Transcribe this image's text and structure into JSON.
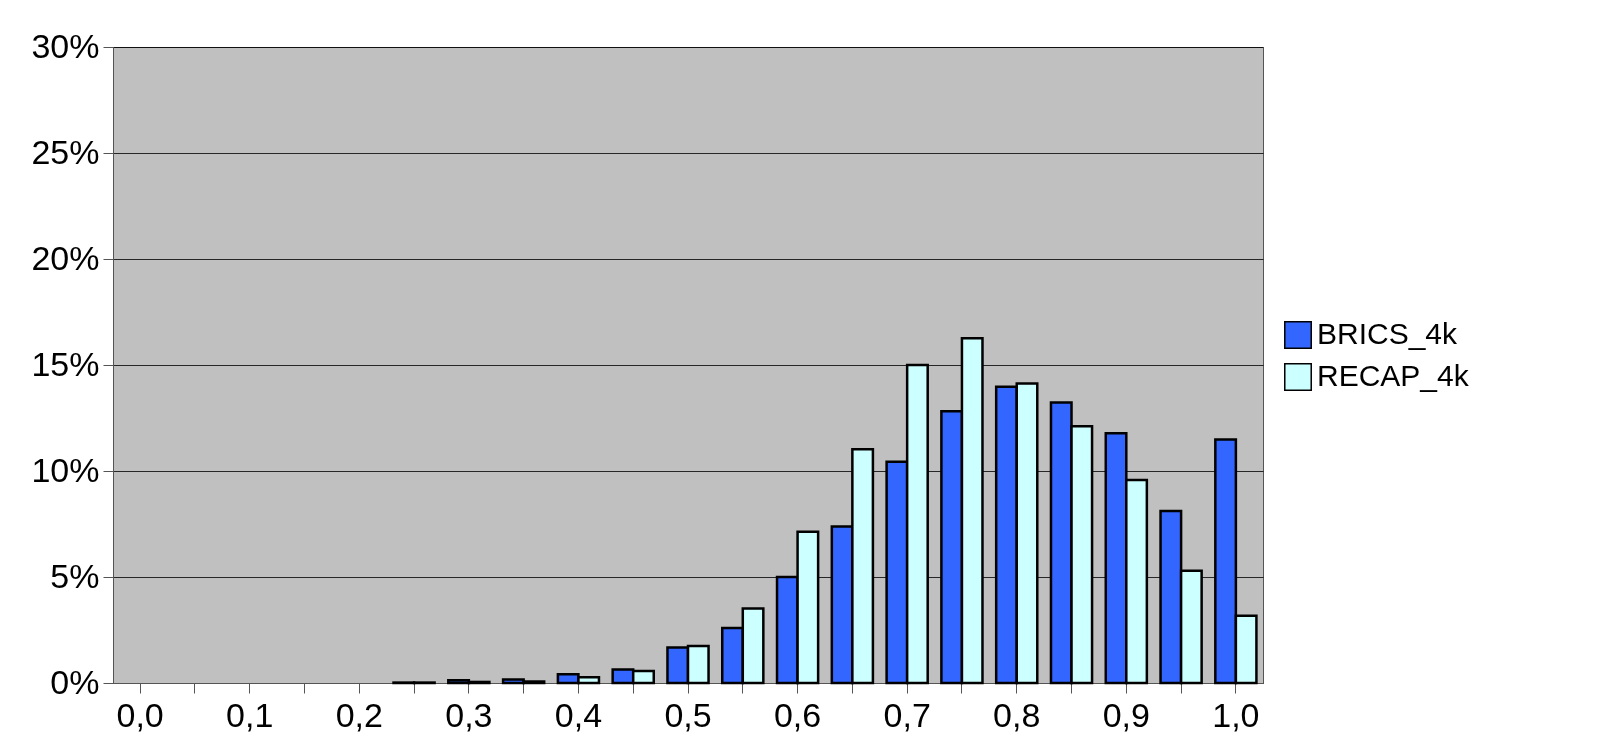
{
  "chart_data": {
    "type": "bar",
    "categories": [
      "0,0",
      null,
      "0,1",
      null,
      "0,2",
      null,
      "0,3",
      null,
      "0,4",
      null,
      "0,5",
      null,
      "0,6",
      null,
      "0,7",
      null,
      "0,8",
      null,
      "0,9",
      null,
      "1,0"
    ],
    "series": [
      {
        "name": "BRICS_4k",
        "color": "#3366ff",
        "values": [
          0,
          0,
          0,
          0,
          0,
          0.02,
          0.13,
          0.17,
          0.41,
          0.64,
          1.68,
          2.6,
          5.0,
          7.38,
          10.44,
          12.82,
          13.97,
          13.23,
          11.78,
          8.11,
          11.48
        ]
      },
      {
        "name": "RECAP_4k",
        "color": "#ccffff",
        "values": [
          0,
          0,
          0,
          0,
          0,
          0.02,
          0.05,
          0.07,
          0.27,
          0.57,
          1.74,
          3.52,
          7.14,
          11.03,
          15.0,
          16.26,
          14.13,
          12.11,
          9.57,
          5.3,
          3.17
        ]
      }
    ],
    "ylim": [
      0,
      30
    ],
    "yticks": [
      {
        "value": 0,
        "label": "0%"
      },
      {
        "value": 5,
        "label": "5%"
      },
      {
        "value": 10,
        "label": "10%"
      },
      {
        "value": 15,
        "label": "15%"
      },
      {
        "value": 20,
        "label": "20%"
      },
      {
        "value": 25,
        "label": "25%"
      },
      {
        "value": 30,
        "label": "30%"
      }
    ],
    "grid": "y",
    "legend": "right"
  }
}
